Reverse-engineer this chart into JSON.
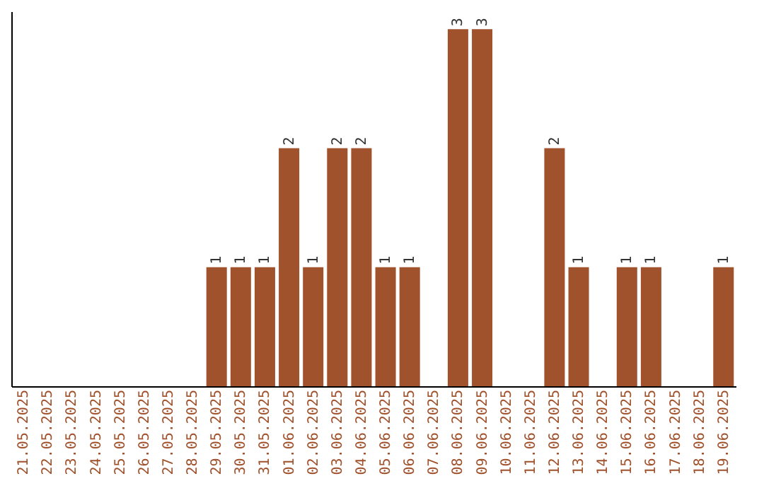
{
  "chart_data": {
    "type": "bar",
    "categories": [
      "21.05.2025",
      "22.05.2025",
      "23.05.2025",
      "24.05.2025",
      "25.05.2025",
      "26.05.2025",
      "27.05.2025",
      "28.05.2025",
      "29.05.2025",
      "30.05.2025",
      "31.05.2025",
      "01.06.2025",
      "02.06.2025",
      "03.06.2025",
      "04.06.2025",
      "05.06.2025",
      "06.06.2025",
      "07.06.2025",
      "08.06.2025",
      "09.06.2025",
      "10.06.2025",
      "11.06.2025",
      "12.06.2025",
      "13.06.2025",
      "14.06.2025",
      "15.06.2025",
      "16.06.2025",
      "17.06.2025",
      "18.06.2025",
      "19.06.2025"
    ],
    "values": [
      0,
      0,
      0,
      0,
      0,
      0,
      0,
      0,
      1,
      1,
      1,
      2,
      1,
      2,
      2,
      1,
      1,
      0,
      3,
      3,
      0,
      0,
      2,
      1,
      0,
      1,
      1,
      0,
      0,
      1
    ],
    "value_labels": [
      null,
      null,
      null,
      null,
      null,
      null,
      null,
      null,
      "1",
      "1",
      "1",
      "2",
      "1",
      "2",
      "2",
      "1",
      "1",
      null,
      "3",
      "3",
      null,
      null,
      "2",
      "1",
      null,
      "1",
      "1",
      null,
      null,
      "1"
    ],
    "color": "#a0522d",
    "ylim": [
      0,
      3.15
    ],
    "tick_labels": "x",
    "grid": false
  }
}
